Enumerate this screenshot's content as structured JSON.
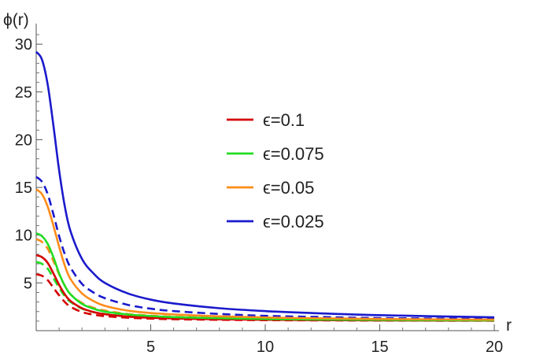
{
  "chart_data": {
    "type": "line",
    "title": "",
    "xlabel": "r",
    "ylabel": "ϕ(r)",
    "xlim": [
      0,
      20
    ],
    "ylim": [
      0,
      31
    ],
    "x_ticks": [
      5,
      10,
      15,
      20
    ],
    "x_tick_labels": [
      "5",
      "10",
      "15",
      "20"
    ],
    "y_ticks": [
      5,
      10,
      15,
      20,
      25,
      30
    ],
    "y_tick_labels": [
      "5",
      "10",
      "15",
      "20",
      "25",
      "30"
    ],
    "grid": false,
    "legend_position": "center-right",
    "x": [
      0,
      0.25,
      0.5,
      0.75,
      1,
      1.25,
      1.5,
      2,
      2.5,
      3,
      4,
      5,
      6,
      8,
      10,
      12,
      15,
      20
    ],
    "series": [
      {
        "name": "ϵ=0.1",
        "color": "#d40000",
        "dash": "solid",
        "legend": true,
        "values": [
          7.9,
          7.7,
          7.1,
          6.0,
          4.8,
          3.8,
          3.1,
          2.35,
          1.95,
          1.72,
          1.47,
          1.35,
          1.28,
          1.19,
          1.14,
          1.11,
          1.08,
          1.05
        ]
      },
      {
        "name": "ϵ=0.075",
        "color": "#22dd22",
        "dash": "solid",
        "legend": true,
        "values": [
          10.2,
          9.9,
          9.1,
          7.7,
          6.0,
          4.7,
          3.8,
          2.8,
          2.3,
          2.0,
          1.7,
          1.53,
          1.42,
          1.3,
          1.22,
          1.17,
          1.13,
          1.08
        ]
      },
      {
        "name": "ϵ=0.05",
        "color": "#ff8c1a",
        "dash": "solid",
        "legend": true,
        "values": [
          14.8,
          14.3,
          13.0,
          11.0,
          8.8,
          6.8,
          5.4,
          3.9,
          3.1,
          2.6,
          2.1,
          1.85,
          1.7,
          1.5,
          1.38,
          1.3,
          1.22,
          1.15
        ]
      },
      {
        "name": "ϵ=0.025",
        "color": "#1a1acc",
        "dash": "solid",
        "legend": true,
        "values": [
          29.2,
          28.4,
          25.8,
          21.5,
          16.8,
          13.0,
          10.4,
          7.5,
          6.0,
          5.0,
          3.9,
          3.25,
          2.85,
          2.35,
          2.05,
          1.85,
          1.62,
          1.4
        ]
      },
      {
        "name": "",
        "color": "#d40000",
        "dash": "dashed",
        "legend": false,
        "values": [
          5.9,
          5.75,
          5.3,
          4.5,
          3.7,
          3.0,
          2.5,
          1.95,
          1.68,
          1.52,
          1.35,
          1.26,
          1.2,
          1.14,
          1.1,
          1.08,
          1.06,
          1.04
        ]
      },
      {
        "name": "",
        "color": "#22dd22",
        "dash": "dashed",
        "legend": false,
        "values": [
          7.2,
          7.0,
          6.5,
          5.5,
          4.5,
          3.6,
          3.0,
          2.3,
          1.95,
          1.75,
          1.5,
          1.38,
          1.3,
          1.21,
          1.16,
          1.12,
          1.09,
          1.06
        ]
      },
      {
        "name": "",
        "color": "#ff8c1a",
        "dash": "dashed",
        "legend": false,
        "values": [
          9.6,
          9.3,
          8.6,
          7.3,
          5.9,
          4.7,
          3.8,
          2.9,
          2.4,
          2.1,
          1.75,
          1.57,
          1.46,
          1.33,
          1.25,
          1.2,
          1.15,
          1.1
        ]
      },
      {
        "name": "",
        "color": "#1a1acc",
        "dash": "dashed",
        "legend": false,
        "values": [
          16.1,
          15.6,
          14.3,
          12.2,
          9.9,
          8.0,
          6.6,
          4.9,
          4.0,
          3.4,
          2.7,
          2.3,
          2.05,
          1.75,
          1.55,
          1.45,
          1.32,
          1.22
        ]
      }
    ]
  }
}
